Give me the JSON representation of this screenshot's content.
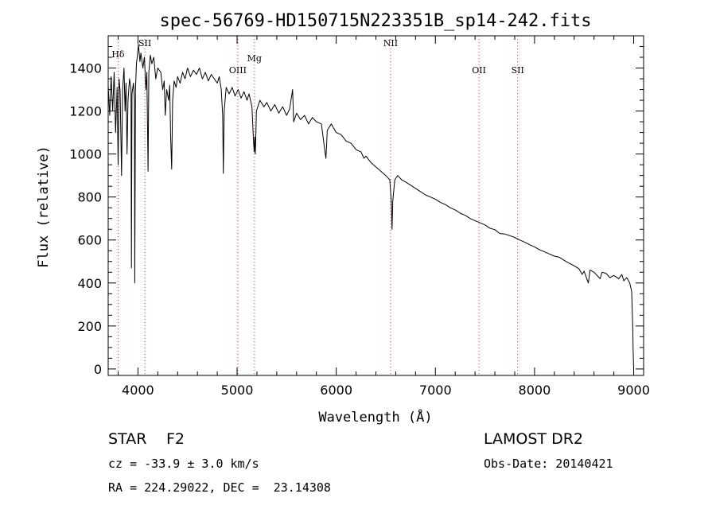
{
  "chart_data": {
    "type": "line",
    "title": "spec-56769-HD150715N223351B_sp14-242.fits",
    "xlabel": "Wavelength (Å)",
    "ylabel": "Flux (relative)",
    "xlim": [
      3700,
      9100
    ],
    "ylim": [
      -30,
      1550
    ],
    "x_ticks": [
      4000,
      5000,
      6000,
      7000,
      8000,
      9000
    ],
    "y_ticks": [
      0,
      200,
      400,
      600,
      800,
      1000,
      1200,
      1400
    ],
    "grid": false,
    "line_color": "#000000",
    "marker_color": "#cc3333",
    "series": [
      {
        "points": [
          [
            3700,
            1320
          ],
          [
            3715,
            1180
          ],
          [
            3730,
            1360
          ],
          [
            3745,
            1200
          ],
          [
            3760,
            1380
          ],
          [
            3775,
            1100
          ],
          [
            3790,
            1310
          ],
          [
            3800,
            950
          ],
          [
            3810,
            1350
          ],
          [
            3820,
            1290
          ],
          [
            3835,
            900
          ],
          [
            3845,
            1300
          ],
          [
            3860,
            1400
          ],
          [
            3870,
            1200
          ],
          [
            3880,
            1330
          ],
          [
            3890,
            1000
          ],
          [
            3900,
            1250
          ],
          [
            3915,
            1350
          ],
          [
            3930,
            1300
          ],
          [
            3934,
            470
          ],
          [
            3940,
            1280
          ],
          [
            3955,
            1330
          ],
          [
            3965,
            1250
          ],
          [
            3968,
            400
          ],
          [
            3975,
            1300
          ],
          [
            3985,
            1420
          ],
          [
            3995,
            1460
          ],
          [
            4005,
            1510
          ],
          [
            4020,
            1430
          ],
          [
            4030,
            1470
          ],
          [
            4050,
            1400
          ],
          [
            4065,
            1450
          ],
          [
            4080,
            1300
          ],
          [
            4090,
            1380
          ],
          [
            4102,
            920
          ],
          [
            4110,
            1380
          ],
          [
            4125,
            1460
          ],
          [
            4140,
            1420
          ],
          [
            4160,
            1450
          ],
          [
            4180,
            1350
          ],
          [
            4200,
            1400
          ],
          [
            4230,
            1380
          ],
          [
            4250,
            1300
          ],
          [
            4265,
            1340
          ],
          [
            4275,
            1180
          ],
          [
            4290,
            1300
          ],
          [
            4310,
            1250
          ],
          [
            4320,
            1320
          ],
          [
            4330,
            1080
          ],
          [
            4340,
            930
          ],
          [
            4350,
            1250
          ],
          [
            4365,
            1340
          ],
          [
            4385,
            1310
          ],
          [
            4400,
            1360
          ],
          [
            4425,
            1330
          ],
          [
            4450,
            1380
          ],
          [
            4475,
            1350
          ],
          [
            4500,
            1400
          ],
          [
            4530,
            1360
          ],
          [
            4560,
            1390
          ],
          [
            4590,
            1370
          ],
          [
            4620,
            1400
          ],
          [
            4650,
            1350
          ],
          [
            4680,
            1380
          ],
          [
            4710,
            1340
          ],
          [
            4740,
            1370
          ],
          [
            4770,
            1350
          ],
          [
            4800,
            1330
          ],
          [
            4820,
            1360
          ],
          [
            4840,
            1300
          ],
          [
            4855,
            1180
          ],
          [
            4861,
            910
          ],
          [
            4870,
            1200
          ],
          [
            4890,
            1310
          ],
          [
            4920,
            1280
          ],
          [
            4950,
            1310
          ],
          [
            4980,
            1270
          ],
          [
            5010,
            1300
          ],
          [
            5040,
            1260
          ],
          [
            5070,
            1290
          ],
          [
            5100,
            1250
          ],
          [
            5120,
            1280
          ],
          [
            5150,
            1220
          ],
          [
            5167,
            1050
          ],
          [
            5172,
            1010
          ],
          [
            5178,
            1080
          ],
          [
            5184,
            1000
          ],
          [
            5195,
            1200
          ],
          [
            5230,
            1250
          ],
          [
            5270,
            1220
          ],
          [
            5300,
            1240
          ],
          [
            5340,
            1200
          ],
          [
            5380,
            1230
          ],
          [
            5420,
            1190
          ],
          [
            5460,
            1220
          ],
          [
            5500,
            1180
          ],
          [
            5530,
            1210
          ],
          [
            5560,
            1300
          ],
          [
            5570,
            1150
          ],
          [
            5600,
            1190
          ],
          [
            5640,
            1160
          ],
          [
            5680,
            1180
          ],
          [
            5720,
            1140
          ],
          [
            5760,
            1170
          ],
          [
            5800,
            1150
          ],
          [
            5850,
            1140
          ],
          [
            5875,
            1050
          ],
          [
            5890,
            1000
          ],
          [
            5896,
            980
          ],
          [
            5910,
            1110
          ],
          [
            5950,
            1140
          ],
          [
            6000,
            1100
          ],
          [
            6050,
            1090
          ],
          [
            6100,
            1060
          ],
          [
            6150,
            1050
          ],
          [
            6200,
            1020
          ],
          [
            6250,
            1010
          ],
          [
            6280,
            980
          ],
          [
            6300,
            990
          ],
          [
            6350,
            960
          ],
          [
            6400,
            940
          ],
          [
            6450,
            920
          ],
          [
            6500,
            900
          ],
          [
            6540,
            880
          ],
          [
            6556,
            780
          ],
          [
            6563,
            650
          ],
          [
            6570,
            780
          ],
          [
            6590,
            880
          ],
          [
            6620,
            900
          ],
          [
            6660,
            880
          ],
          [
            6700,
            870
          ],
          [
            6750,
            855
          ],
          [
            6800,
            840
          ],
          [
            6850,
            825
          ],
          [
            6900,
            810
          ],
          [
            6950,
            800
          ],
          [
            7000,
            790
          ],
          [
            7050,
            775
          ],
          [
            7100,
            765
          ],
          [
            7150,
            750
          ],
          [
            7200,
            740
          ],
          [
            7250,
            725
          ],
          [
            7300,
            715
          ],
          [
            7350,
            700
          ],
          [
            7400,
            690
          ],
          [
            7450,
            680
          ],
          [
            7500,
            670
          ],
          [
            7550,
            655
          ],
          [
            7600,
            648
          ],
          [
            7650,
            630
          ],
          [
            7700,
            628
          ],
          [
            7750,
            620
          ],
          [
            7800,
            612
          ],
          [
            7850,
            600
          ],
          [
            7900,
            590
          ],
          [
            7950,
            578
          ],
          [
            8000,
            568
          ],
          [
            8050,
            555
          ],
          [
            8100,
            545
          ],
          [
            8150,
            535
          ],
          [
            8200,
            525
          ],
          [
            8250,
            520
          ],
          [
            8300,
            505
          ],
          [
            8350,
            492
          ],
          [
            8400,
            480
          ],
          [
            8450,
            465
          ],
          [
            8480,
            440
          ],
          [
            8500,
            455
          ],
          [
            8542,
            400
          ],
          [
            8560,
            460
          ],
          [
            8600,
            450
          ],
          [
            8662,
            420
          ],
          [
            8680,
            450
          ],
          [
            8720,
            445
          ],
          [
            8760,
            425
          ],
          [
            8800,
            435
          ],
          [
            8850,
            420
          ],
          [
            8880,
            440
          ],
          [
            8900,
            410
          ],
          [
            8930,
            425
          ],
          [
            8960,
            400
          ],
          [
            8980,
            360
          ],
          [
            8990,
            200
          ],
          [
            8995,
            80
          ],
          [
            9000,
            0
          ]
        ]
      }
    ],
    "lines": [
      {
        "label": "Hδ",
        "wavelength": 3800
      },
      {
        "label": "SII",
        "wavelength": 4070
      },
      {
        "label": "OIII",
        "wavelength": 5007
      },
      {
        "label": "Mg",
        "wavelength": 5175
      },
      {
        "label": "NII",
        "wavelength": 6548
      },
      {
        "label": "OII",
        "wavelength": 7440
      },
      {
        "label": "SII",
        "wavelength": 7830
      }
    ]
  },
  "info": {
    "object_class": "STAR",
    "subclass": "F2",
    "redshift": "cz = -33.9 ± 3.0 km/s",
    "coords": "RA = 224.29022, DEC =  23.14308",
    "survey": "LAMOST DR2",
    "obs_date": "Obs-Date: 20140421"
  }
}
